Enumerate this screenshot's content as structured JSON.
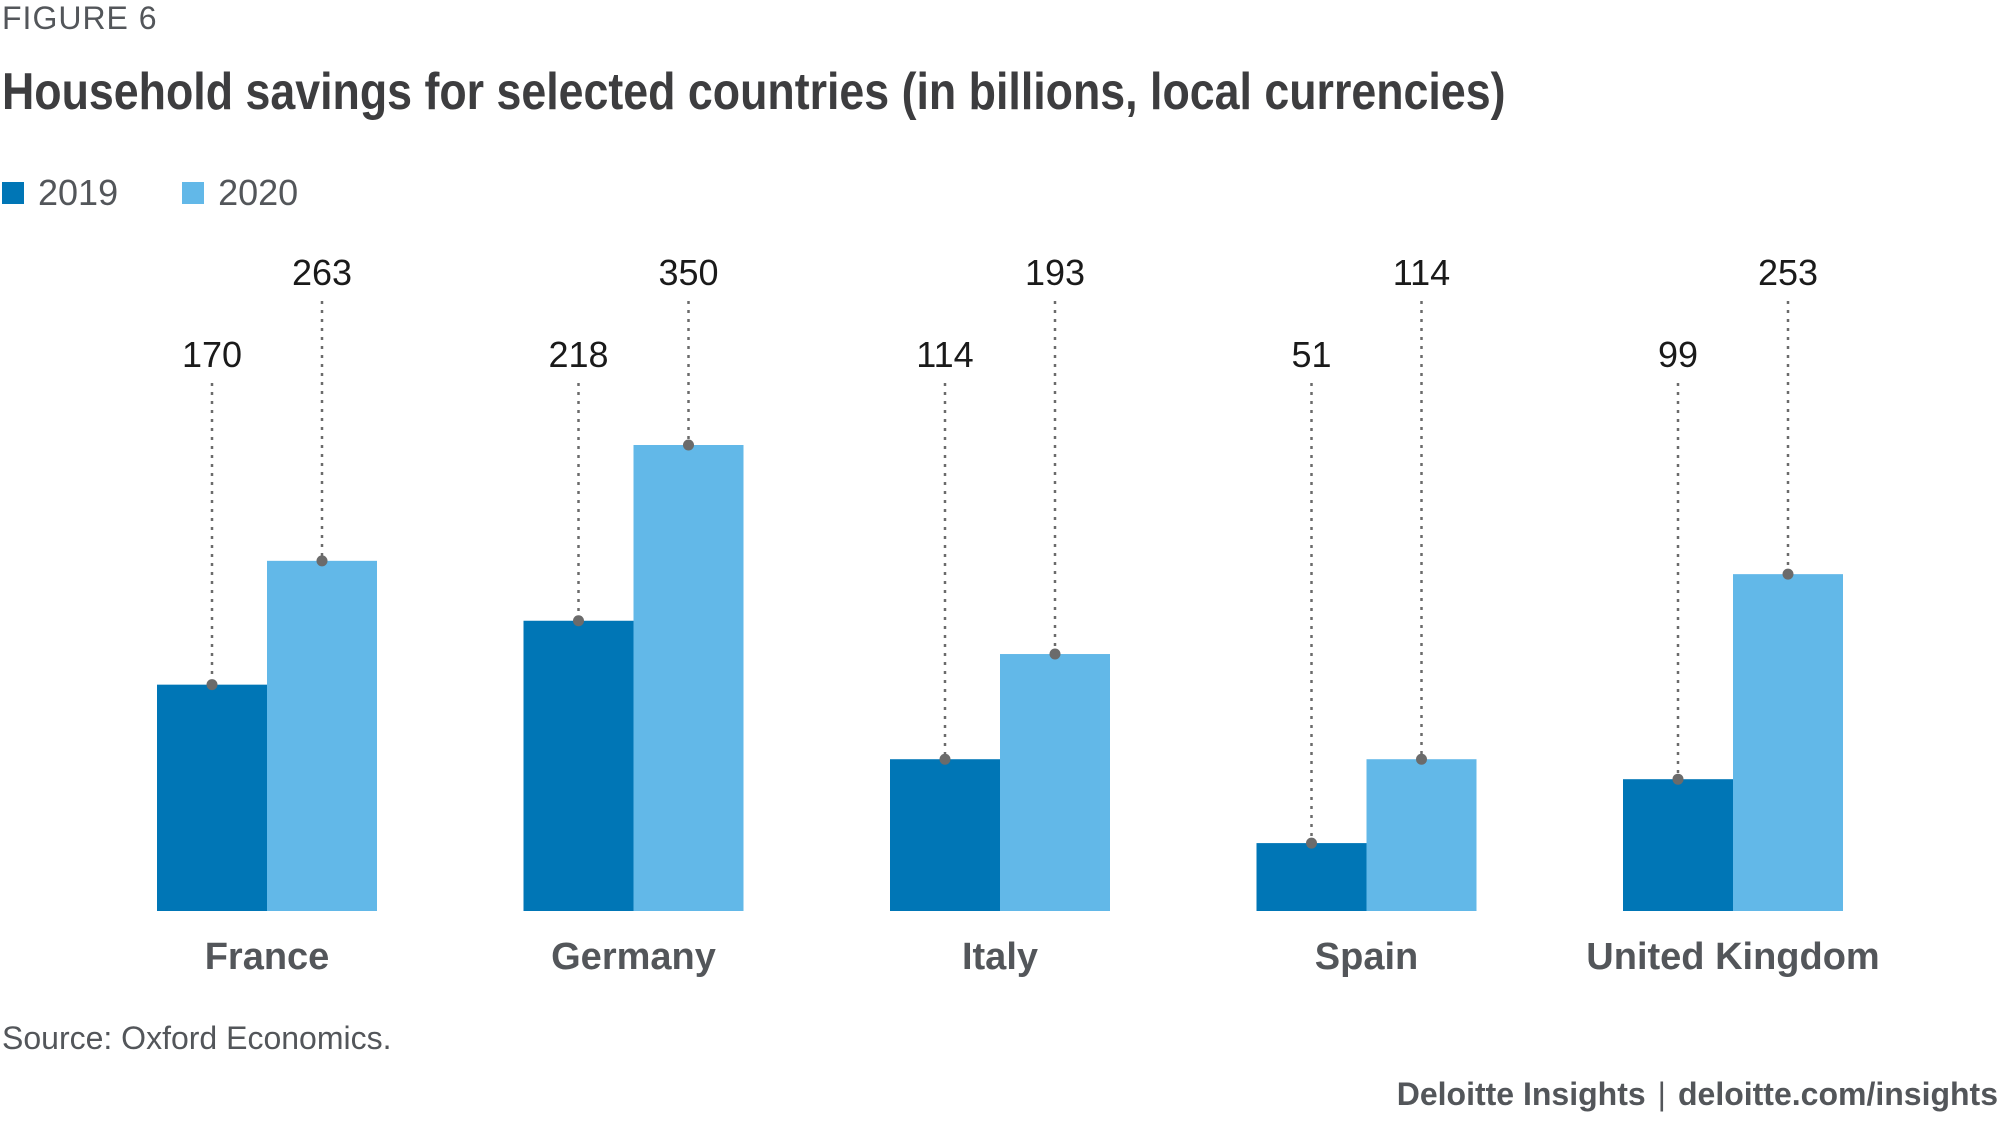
{
  "figure_label": "FIGURE 6",
  "chart_data": {
    "type": "bar",
    "title": "Household savings for selected countries (in billions, local currencies)",
    "categories": [
      "France",
      "Germany",
      "Italy",
      "Spain",
      "United Kingdom"
    ],
    "series": [
      {
        "name": "2019",
        "values": [
          170,
          218,
          114,
          51,
          99
        ],
        "color": "#0076b6"
      },
      {
        "name": "2020",
        "values": [
          263,
          350,
          193,
          114,
          253
        ],
        "color": "#62b8e8"
      }
    ],
    "ylim": [
      0,
      350
    ],
    "legend": "top-left",
    "grid": false
  },
  "source": "Source: Oxford Economics.",
  "footer": {
    "brand": "Deloitte Insights",
    "separator": "|",
    "url": "deloitte.com/insights"
  },
  "colors": {
    "dark_blue": "#0076b6",
    "light_blue": "#62b8e8",
    "text": "#53565a",
    "leader": "#6b6b6b"
  }
}
